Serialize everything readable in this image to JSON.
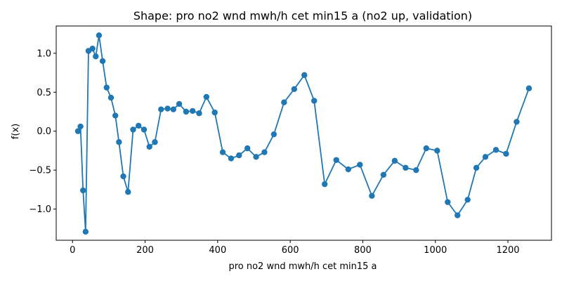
{
  "chart_data": {
    "type": "line",
    "title": "Shape: pro no2 wnd mwh/h cet min15 a (no2 up, validation)",
    "xlabel": "pro no2 wnd mwh/h cet min15 a",
    "ylabel": "f(x)",
    "xlim": [
      -45,
      1320
    ],
    "ylim": [
      -1.4,
      1.35
    ],
    "xticks": [
      0,
      200,
      400,
      600,
      800,
      1000,
      1200
    ],
    "yticks": [
      -1.0,
      -0.5,
      0.0,
      0.5,
      1.0
    ],
    "ytick_labels": [
      "−1.0",
      "−0.5",
      "0.0",
      "0.5",
      "1.0"
    ],
    "grid": false,
    "color": "#1f77b4",
    "series": [
      {
        "x": [
          15,
          22,
          29,
          36,
          44,
          55,
          64,
          73,
          83,
          94,
          106,
          118,
          128,
          140,
          153,
          167,
          182,
          197,
          212,
          227,
          244,
          262,
          278,
          294,
          313,
          331,
          349,
          369,
          392,
          414,
          437,
          459,
          482,
          506,
          529,
          555,
          583,
          611,
          639,
          666,
          695,
          727,
          760,
          792,
          825,
          857,
          888,
          918,
          947,
          975,
          1005,
          1034,
          1061,
          1089,
          1113,
          1138,
          1167,
          1195,
          1224,
          1258
        ],
        "y": [
          0.0,
          0.06,
          -0.76,
          -1.29,
          1.03,
          1.06,
          0.96,
          1.23,
          0.9,
          0.56,
          0.43,
          0.2,
          -0.14,
          -0.58,
          -0.78,
          0.02,
          0.07,
          0.02,
          -0.2,
          -0.14,
          0.28,
          0.29,
          0.28,
          0.35,
          0.25,
          0.26,
          0.23,
          0.44,
          0.24,
          -0.27,
          -0.35,
          -0.31,
          -0.22,
          -0.33,
          -0.27,
          -0.04,
          0.37,
          0.54,
          0.72,
          0.39,
          -0.68,
          -0.37,
          -0.49,
          -0.43,
          -0.83,
          -0.56,
          -0.38,
          -0.47,
          -0.5,
          -0.22,
          -0.25,
          -0.91,
          -1.08,
          -0.88,
          -0.47,
          -0.33,
          -0.24,
          -0.29,
          0.12,
          0.55
        ]
      }
    ]
  }
}
